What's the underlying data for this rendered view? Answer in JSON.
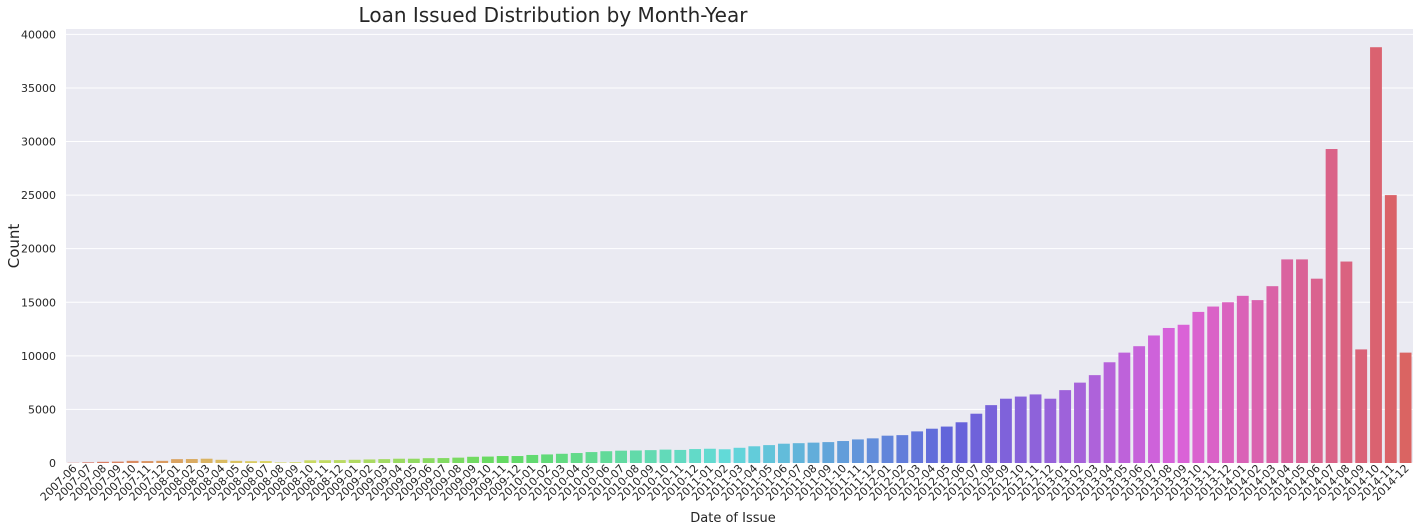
{
  "chart_data": {
    "type": "bar",
    "title": "Loan Issued Distribution by Month-Year",
    "xlabel": "Date of Issue",
    "ylabel": "Count",
    "ylim": [
      0,
      40500
    ],
    "yticks": [
      0,
      5000,
      10000,
      15000,
      20000,
      25000,
      30000,
      35000,
      40000
    ],
    "grid": true,
    "background": "#eaeaf2",
    "categories": [
      "2007-06",
      "2007-07",
      "2007-08",
      "2007-09",
      "2007-10",
      "2007-11",
      "2007-12",
      "2008-01",
      "2008-02",
      "2008-03",
      "2008-04",
      "2008-05",
      "2008-06",
      "2008-07",
      "2008-08",
      "2008-09",
      "2008-10",
      "2008-11",
      "2008-12",
      "2009-01",
      "2009-02",
      "2009-03",
      "2009-04",
      "2009-05",
      "2009-06",
      "2009-07",
      "2009-08",
      "2009-09",
      "2009-10",
      "2009-11",
      "2009-12",
      "2010-01",
      "2010-02",
      "2010-03",
      "2010-04",
      "2010-05",
      "2010-06",
      "2010-07",
      "2010-08",
      "2010-09",
      "2010-10",
      "2010-11",
      "2010-12",
      "2011-01",
      "2011-02",
      "2011-03",
      "2011-04",
      "2011-05",
      "2011-06",
      "2011-07",
      "2011-08",
      "2011-09",
      "2011-10",
      "2011-11",
      "2011-12",
      "2012-01",
      "2012-02",
      "2012-03",
      "2012-04",
      "2012-05",
      "2012-06",
      "2012-07",
      "2012-08",
      "2012-09",
      "2012-10",
      "2012-11",
      "2012-12",
      "2013-01",
      "2013-02",
      "2013-03",
      "2013-04",
      "2013-05",
      "2013-06",
      "2013-07",
      "2013-08",
      "2013-09",
      "2013-10",
      "2013-11",
      "2013-12",
      "2014-01",
      "2014-02",
      "2014-03",
      "2014-04",
      "2014-05",
      "2014-06",
      "2014-07",
      "2014-08",
      "2014-09",
      "2014-10",
      "2014-11",
      "2014-12"
    ],
    "values": [
      20,
      60,
      110,
      130,
      200,
      180,
      200,
      360,
      370,
      400,
      300,
      200,
      170,
      180,
      50,
      70,
      250,
      260,
      270,
      300,
      330,
      360,
      400,
      400,
      450,
      460,
      500,
      580,
      600,
      650,
      650,
      750,
      800,
      860,
      930,
      1020,
      1100,
      1150,
      1170,
      1200,
      1250,
      1220,
      1300,
      1330,
      1280,
      1420,
      1560,
      1670,
      1800,
      1850,
      1900,
      1950,
      2050,
      2200,
      2300,
      2550,
      2600,
      2950,
      3200,
      3400,
      3800,
      4600,
      5400,
      6000,
      6200,
      6400,
      6000,
      6800,
      7500,
      8200,
      9400,
      10300,
      10900,
      11900,
      12600,
      12900,
      14100,
      14600,
      15000,
      15600,
      15200,
      16500,
      19000,
      19000,
      17200,
      29300,
      18800,
      10600,
      38800,
      25000,
      10300
    ]
  }
}
